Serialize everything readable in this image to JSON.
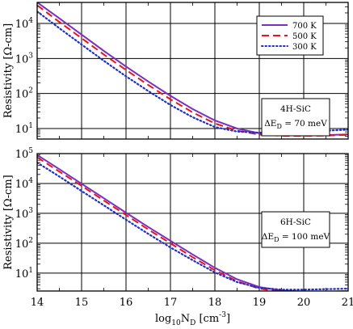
{
  "chart_data": [
    {
      "type": "line",
      "panel": "top",
      "ylabel": "Resistivity [Ω-cm]",
      "xlim": [
        14,
        21
      ],
      "ylim_log10": [
        0.7,
        4.6
      ],
      "yscale": "log",
      "ytick_exponents": [
        1,
        2,
        3,
        4
      ],
      "grid": true,
      "legend": {
        "placement": "top-right",
        "entries": [
          {
            "label": "700 K",
            "color": "#7b2fbf",
            "style": "solid"
          },
          {
            "label": "500 K",
            "color": "#e8141c",
            "style": "dashed"
          },
          {
            "label": "300 K",
            "color": "#1f2ec8",
            "style": "dotted"
          }
        ]
      },
      "annotation": {
        "line1": "4H-SiC",
        "line2_prefix": "ΔE",
        "line2_sub": "D",
        "line2_suffix": " = 70 meV"
      },
      "series": [
        {
          "name": "700 K",
          "x": [
            14,
            14.5,
            15,
            15.5,
            16,
            16.5,
            17,
            17.5,
            18,
            18.5,
            19,
            19.5,
            20,
            20.5,
            21
          ],
          "y": [
            40000,
            14000,
            4800,
            1650,
            590,
            220,
            86,
            36,
            17,
            10,
            7.3,
            6.4,
            6.4,
            6.5,
            6.8
          ]
        },
        {
          "name": "500 K",
          "x": [
            14,
            14.5,
            15,
            15.5,
            16,
            16.5,
            17,
            17.5,
            18,
            18.5,
            19,
            19.5,
            20,
            20.5,
            21
          ],
          "y": [
            33000,
            11000,
            3800,
            1300,
            470,
            175,
            68,
            29,
            14,
            8.7,
            6.7,
            6.2,
            6.2,
            6.3,
            6.6
          ]
        },
        {
          "name": "300 K",
          "x": [
            14,
            14.5,
            15,
            15.5,
            16,
            16.5,
            17,
            17.5,
            18,
            18.5,
            19,
            19.5,
            20,
            20.5,
            21
          ],
          "y": [
            22000,
            7300,
            2500,
            860,
            310,
            118,
            47,
            21,
            11,
            8.2,
            7.6,
            7.8,
            8.2,
            8.7,
            9.3
          ]
        }
      ]
    },
    {
      "type": "line",
      "panel": "bottom",
      "ylabel": "Resistivity [Ω-cm]",
      "xlabel_base": "log",
      "xlabel_base_sub": "10",
      "xlabel_var": "N",
      "xlabel_var_sub": "D",
      "xlabel_unit_pre": " [cm",
      "xlabel_unit_sup": "-3",
      "xlabel_unit_post": "]",
      "xlim": [
        14,
        21
      ],
      "xticks": [
        14,
        15,
        16,
        17,
        18,
        19,
        20,
        21
      ],
      "ylim_log10": [
        0.4,
        5.0
      ],
      "yscale": "log",
      "ytick_exponents": [
        1,
        2,
        3,
        4,
        5
      ],
      "grid": true,
      "annotation": {
        "line1": "6H-SiC",
        "line2_prefix": "ΔE",
        "line2_sub": "D",
        "line2_suffix": " = 100 meV"
      },
      "series": [
        {
          "name": "700 K",
          "x": [
            14,
            14.5,
            15,
            15.5,
            16,
            16.5,
            17,
            17.5,
            18,
            18.5,
            19,
            19.5,
            20,
            20.5,
            21
          ],
          "y": [
            90000,
            30000,
            9800,
            3200,
            1050,
            350,
            120,
            42,
            15,
            6.2,
            3.4,
            2.6,
            2.4,
            2.4,
            2.5
          ]
        },
        {
          "name": "500 K",
          "x": [
            14,
            14.5,
            15,
            15.5,
            16,
            16.5,
            17,
            17.5,
            18,
            18.5,
            19,
            19.5,
            20,
            20.5,
            21
          ],
          "y": [
            75000,
            25000,
            8300,
            2700,
            880,
            290,
            99,
            34,
            12.5,
            5.3,
            3.0,
            2.4,
            2.3,
            2.3,
            2.4
          ]
        },
        {
          "name": "300 K",
          "x": [
            14,
            14.5,
            15,
            15.5,
            16,
            16.5,
            17,
            17.5,
            18,
            18.5,
            19,
            19.5,
            20,
            20.5,
            21
          ],
          "y": [
            50000,
            17000,
            5600,
            1850,
            610,
            205,
            72,
            27,
            10.5,
            5.0,
            3.2,
            2.8,
            2.8,
            2.9,
            3.0
          ]
        }
      ]
    }
  ]
}
